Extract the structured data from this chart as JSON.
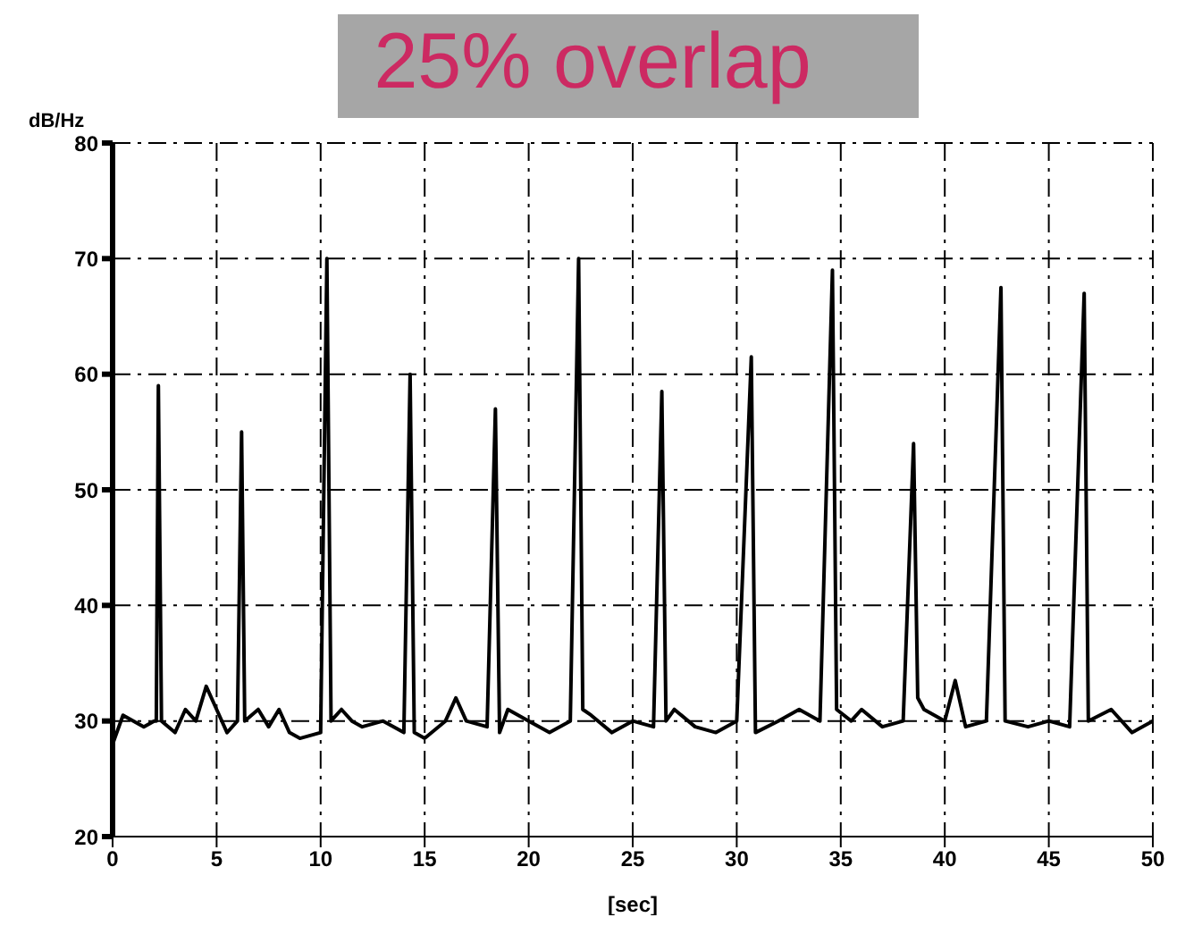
{
  "chart_data": {
    "type": "line",
    "title": "25% overlap",
    "xlabel": "[sec]",
    "ylabel": "dB/Hz",
    "x": [
      0,
      0.5,
      1,
      1.5,
      2,
      2.1,
      2.2,
      2.35,
      3,
      3.5,
      4,
      4.5,
      5,
      5.5,
      6,
      6.2,
      6.35,
      7,
      7.5,
      8,
      8.5,
      9,
      10,
      10.3,
      10.5,
      11,
      11.5,
      12,
      13,
      14,
      14.3,
      14.5,
      15,
      16,
      16.5,
      17,
      18,
      18.4,
      18.6,
      19,
      20,
      21,
      22,
      22.4,
      22.6,
      23,
      24,
      25,
      26,
      26.4,
      26.6,
      27,
      28,
      29,
      30,
      30.7,
      30.9,
      32,
      33,
      34,
      34.6,
      34.8,
      35.5,
      36,
      37,
      38,
      38.5,
      38.7,
      39,
      40,
      40.5,
      41,
      42,
      42.7,
      42.9,
      44,
      45,
      46,
      46.7,
      46.9,
      48,
      49,
      50
    ],
    "series": [
      {
        "color": "#000000",
        "values": [
          28,
          30.5,
          30,
          29.5,
          30,
          30,
          59,
          30,
          29,
          31,
          30,
          33,
          31,
          29,
          30,
          55,
          30,
          31,
          29.5,
          31,
          29,
          28.5,
          29,
          70,
          30,
          31,
          30,
          29.5,
          30,
          29,
          60,
          29,
          28.5,
          30,
          32,
          30,
          29.5,
          57,
          29,
          31,
          30,
          29,
          30,
          70,
          31,
          30.5,
          29,
          30,
          29.5,
          58.5,
          30,
          31,
          29.5,
          29,
          30,
          61.5,
          29,
          30,
          31,
          30,
          69,
          31,
          30,
          31,
          29.5,
          30,
          54,
          32,
          31,
          30,
          33.5,
          29.5,
          30,
          67.5,
          30,
          29.5,
          30,
          29.5,
          67,
          30,
          31,
          29,
          30
        ]
      }
    ],
    "xlim": [
      0,
      50
    ],
    "xticks": [
      0,
      5,
      10,
      15,
      20,
      25,
      30,
      35,
      40,
      45,
      50
    ],
    "ylim": [
      20,
      80
    ],
    "yticks": [
      20,
      30,
      40,
      50,
      60,
      70,
      80
    ],
    "grid": true,
    "line_style": "solid",
    "marker": "none"
  }
}
